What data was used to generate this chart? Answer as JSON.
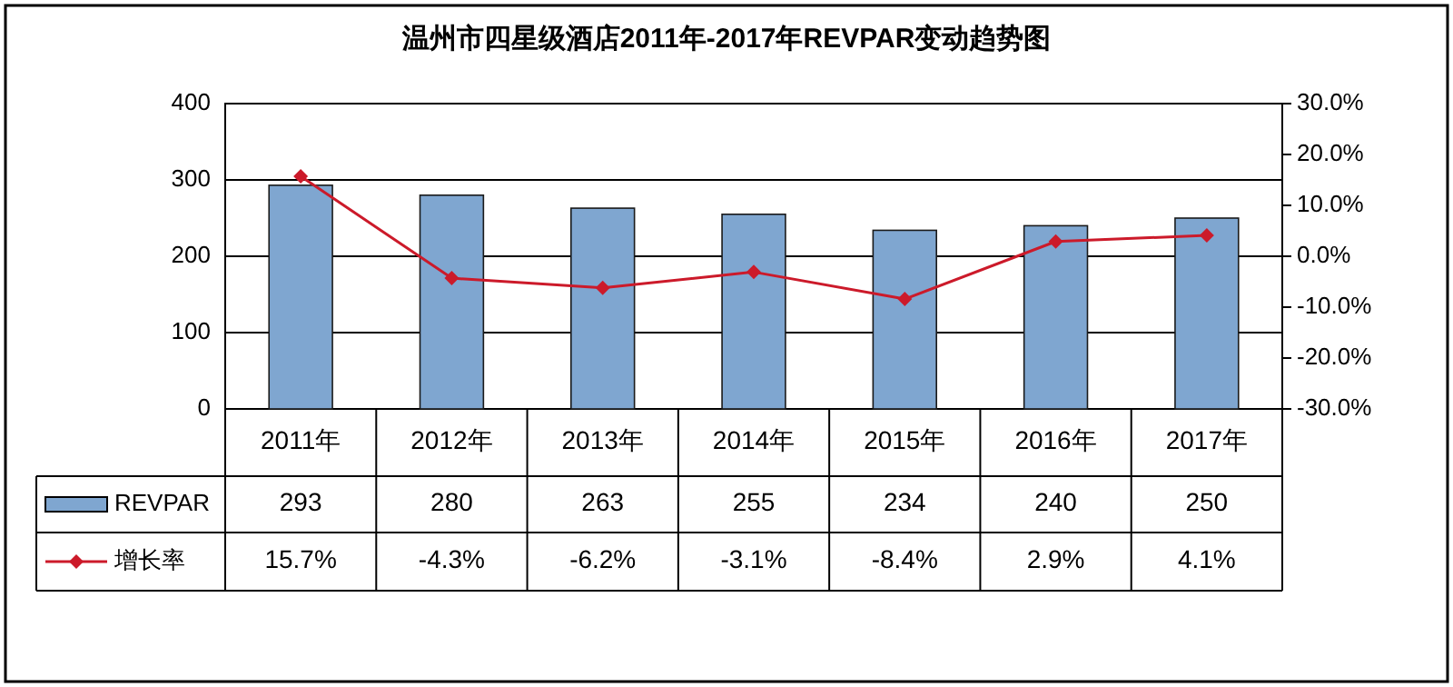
{
  "chart_data": {
    "type": "bar",
    "title": "温州市四星级酒店2011年-2017年REVPAR变动趋势图",
    "categories": [
      "2011年",
      "2012年",
      "2013年",
      "2014年",
      "2015年",
      "2016年",
      "2017年"
    ],
    "series": [
      {
        "name": "REVPAR",
        "color": "#7fa6d0",
        "values": [
          293,
          280,
          263,
          255,
          234,
          240,
          250
        ]
      },
      {
        "name": "增长率",
        "type": "line",
        "axis": "y2",
        "color": "#cc1a2a",
        "marker": "diamond",
        "values": [
          15.7,
          -4.3,
          -6.2,
          -3.1,
          -8.4,
          2.9,
          4.1
        ],
        "value_labels": [
          "15.7%",
          "-4.3%",
          "-6.2%",
          "-3.1%",
          "-8.4%",
          "2.9%",
          "4.1%"
        ]
      }
    ],
    "data_labels": true,
    "ylim": [
      0,
      400
    ],
    "yticks": [
      0,
      100,
      200,
      300,
      400
    ],
    "y2lim": [
      -30,
      30
    ],
    "y2ticks": [
      {
        "value": -30,
        "label": "-30.0%"
      },
      {
        "value": -20,
        "label": "-20.0%"
      },
      {
        "value": -10,
        "label": "-10.0%"
      },
      {
        "value": 0,
        "label": "0.0%"
      },
      {
        "value": 10,
        "label": "10.0%"
      },
      {
        "value": 20,
        "label": "20.0%"
      },
      {
        "value": 30,
        "label": "30.0%"
      }
    ],
    "grid": "y",
    "legend": "bottom"
  }
}
